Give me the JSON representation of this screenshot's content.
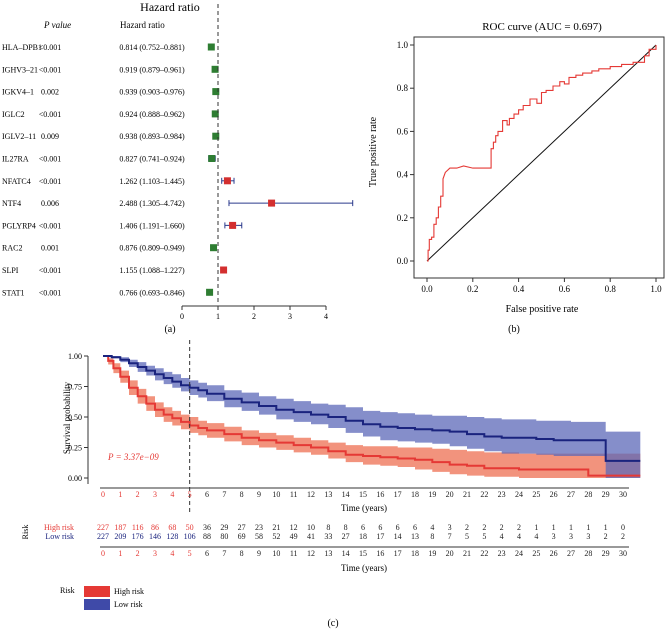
{
  "chart_data": [
    {
      "type": "forest",
      "panel_label": "(a)",
      "title": "Hazard ratio",
      "col_pvalue": "P value",
      "col_hr": "Hazard ratio",
      "xticks": [
        "0",
        "1",
        "2",
        "3",
        "4"
      ],
      "xlim": [
        0,
        4
      ],
      "reference_line": 1,
      "rows": [
        {
          "gene": "HLA–DPB1",
          "p": "<0.001",
          "hr_text": "0.814 (0.752–0.881)",
          "hr": 0.814,
          "lo": 0.752,
          "hi": 0.881
        },
        {
          "gene": "IGHV3–21",
          "p": "<0.001",
          "hr_text": "0.919 (0.879–0.961)",
          "hr": 0.919,
          "lo": 0.879,
          "hi": 0.961
        },
        {
          "gene": "IGKV4–1",
          "p": "0.002",
          "hr_text": "0.939 (0.903–0.976)",
          "hr": 0.939,
          "lo": 0.903,
          "hi": 0.976
        },
        {
          "gene": "IGLC2",
          "p": "<0.001",
          "hr_text": "0.924 (0.888–0.962)",
          "hr": 0.924,
          "lo": 0.888,
          "hi": 0.962
        },
        {
          "gene": "IGLV2–11",
          "p": "0.009",
          "hr_text": "0.938 (0.893–0.984)",
          "hr": 0.938,
          "lo": 0.893,
          "hi": 0.984
        },
        {
          "gene": "IL27RA",
          "p": "<0.001",
          "hr_text": "0.827 (0.741–0.924)",
          "hr": 0.827,
          "lo": 0.741,
          "hi": 0.924
        },
        {
          "gene": "NFATC4",
          "p": "<0.001",
          "hr_text": "1.262 (1.103–1.445)",
          "hr": 1.262,
          "lo": 1.103,
          "hi": 1.445
        },
        {
          "gene": "NTF4",
          "p": "0.006",
          "hr_text": "2.488 (1.305–4.742)",
          "hr": 2.488,
          "lo": 1.305,
          "hi": 4.742
        },
        {
          "gene": "PGLYRP4",
          "p": "<0.001",
          "hr_text": "1.406 (1.191–1.660)",
          "hr": 1.406,
          "lo": 1.191,
          "hi": 1.66
        },
        {
          "gene": "RAC2",
          "p": "0.001",
          "hr_text": "0.876 (0.809–0.949)",
          "hr": 0.876,
          "lo": 0.809,
          "hi": 0.949
        },
        {
          "gene": "SLPI",
          "p": "<0.001",
          "hr_text": "1.155 (1.088–1.227)",
          "hr": 1.155,
          "lo": 1.088,
          "hi": 1.227
        },
        {
          "gene": "STAT1",
          "p": "<0.001",
          "hr_text": "0.766 (0.693–0.846)",
          "hr": 0.766,
          "lo": 0.693,
          "hi": 0.846
        }
      ],
      "colors": {
        "protective": "#2e7d32",
        "risk": "#d32f2f",
        "ci": "#2b3a8c"
      }
    },
    {
      "type": "line",
      "panel_label": "(b)",
      "title": "ROC curve (AUC = 0.697)",
      "xlabel": "False positive rate",
      "ylabel": "True positive rate",
      "xlim": [
        0,
        1
      ],
      "ylim": [
        0,
        1
      ],
      "ticks": [
        "0.0",
        "0.2",
        "0.4",
        "0.6",
        "0.8",
        "1.0"
      ],
      "diagonal": true,
      "color": "#e53935",
      "series": [
        {
          "name": "ROC",
          "x": [
            0,
            0.005,
            0.005,
            0.01,
            0.01,
            0.02,
            0.02,
            0.03,
            0.03,
            0.04,
            0.04,
            0.05,
            0.05,
            0.06,
            0.06,
            0.07,
            0.07,
            0.08,
            0.1,
            0.13,
            0.16,
            0.2,
            0.25,
            0.28,
            0.28,
            0.29,
            0.29,
            0.3,
            0.3,
            0.31,
            0.31,
            0.33,
            0.33,
            0.35,
            0.35,
            0.36,
            0.36,
            0.38,
            0.38,
            0.4,
            0.4,
            0.42,
            0.42,
            0.45,
            0.45,
            0.48,
            0.48,
            0.5,
            0.5,
            0.52,
            0.52,
            0.55,
            0.55,
            0.58,
            0.58,
            0.6,
            0.6,
            0.62,
            0.62,
            0.65,
            0.65,
            0.68,
            0.68,
            0.72,
            0.72,
            0.75,
            0.75,
            0.8,
            0.8,
            0.85,
            0.85,
            0.9,
            0.9,
            0.95,
            0.95,
            0.97,
            0.97,
            1.0,
            1.0
          ],
          "y": [
            0,
            0,
            0.05,
            0.05,
            0.1,
            0.1,
            0.11,
            0.11,
            0.17,
            0.17,
            0.2,
            0.2,
            0.25,
            0.25,
            0.3,
            0.3,
            0.38,
            0.41,
            0.43,
            0.43,
            0.44,
            0.43,
            0.43,
            0.43,
            0.52,
            0.52,
            0.55,
            0.55,
            0.58,
            0.58,
            0.6,
            0.6,
            0.65,
            0.65,
            0.63,
            0.63,
            0.66,
            0.66,
            0.68,
            0.68,
            0.7,
            0.7,
            0.72,
            0.72,
            0.75,
            0.75,
            0.73,
            0.73,
            0.78,
            0.78,
            0.79,
            0.79,
            0.81,
            0.81,
            0.83,
            0.83,
            0.82,
            0.82,
            0.85,
            0.85,
            0.86,
            0.86,
            0.87,
            0.87,
            0.88,
            0.88,
            0.89,
            0.89,
            0.9,
            0.9,
            0.91,
            0.91,
            0.92,
            0.92,
            0.95,
            0.95,
            0.98,
            0.98,
            1.0
          ]
        }
      ]
    },
    {
      "type": "survival",
      "panel_label": "(c)",
      "ylabel": "Survival probability",
      "xlabel": "Time (years)",
      "yticks": [
        "0.00",
        "0.25",
        "0.50",
        "0.75",
        "1.00"
      ],
      "xticks": [
        "0",
        "1",
        "2",
        "3",
        "4",
        "5",
        "6",
        "7",
        "8",
        "9",
        "10",
        "11",
        "12",
        "13",
        "14",
        "15",
        "16",
        "17",
        "18",
        "19",
        "20",
        "21",
        "22",
        "23",
        "24",
        "25",
        "26",
        "27",
        "28",
        "29",
        "30"
      ],
      "xlim": [
        0,
        31
      ],
      "ylim": [
        0,
        1
      ],
      "cutoff": 5,
      "pvalue": "P = 3.37e−09",
      "series": [
        {
          "name": "High risk",
          "color": "#e53935",
          "band": "#f08066",
          "t": [
            0,
            0.3,
            0.6,
            1,
            1.5,
            2,
            2.5,
            3,
            3.5,
            4,
            4.5,
            5,
            5.5,
            6,
            7,
            8,
            9,
            10,
            11,
            12,
            13,
            14,
            15,
            16,
            17,
            18,
            19,
            20,
            21,
            22,
            23,
            24,
            25,
            26,
            27,
            28,
            29,
            30
          ],
          "s": [
            1.0,
            0.96,
            0.9,
            0.83,
            0.74,
            0.67,
            0.61,
            0.56,
            0.52,
            0.49,
            0.46,
            0.43,
            0.41,
            0.39,
            0.36,
            0.33,
            0.31,
            0.29,
            0.27,
            0.25,
            0.22,
            0.19,
            0.18,
            0.17,
            0.16,
            0.15,
            0.13,
            0.11,
            0.1,
            0.08,
            0.08,
            0.07,
            0.07,
            0.07,
            0.07,
            0.02,
            0.02,
            0.02
          ],
          "band_hi": [
            1.0,
            0.98,
            0.94,
            0.88,
            0.8,
            0.73,
            0.67,
            0.62,
            0.58,
            0.55,
            0.52,
            0.5,
            0.47,
            0.45,
            0.42,
            0.39,
            0.37,
            0.35,
            0.33,
            0.31,
            0.29,
            0.27,
            0.26,
            0.26,
            0.25,
            0.25,
            0.24,
            0.23,
            0.22,
            0.21,
            0.21,
            0.2,
            0.2,
            0.2,
            0.2,
            0.2,
            0.2,
            0.2
          ],
          "band_lo": [
            1.0,
            0.93,
            0.86,
            0.78,
            0.68,
            0.61,
            0.55,
            0.5,
            0.46,
            0.43,
            0.4,
            0.37,
            0.35,
            0.33,
            0.3,
            0.27,
            0.25,
            0.23,
            0.21,
            0.19,
            0.16,
            0.13,
            0.11,
            0.1,
            0.09,
            0.07,
            0.05,
            0.03,
            0.02,
            0.01,
            0.01,
            0.0,
            0.0,
            0.0,
            0.0,
            0.0,
            0.0,
            0.0
          ]
        },
        {
          "name": "Low risk",
          "color": "#1a237e",
          "band": "#5c68b8",
          "t": [
            0,
            0.5,
            1,
            1.5,
            2,
            2.5,
            3,
            3.5,
            4,
            4.5,
            5,
            5.5,
            6,
            7,
            8,
            9,
            10,
            11,
            12,
            13,
            14,
            15,
            16,
            17,
            18,
            19,
            20,
            21,
            22,
            23,
            24,
            25,
            26,
            27,
            28,
            29,
            30
          ],
          "s": [
            1.0,
            0.99,
            0.97,
            0.94,
            0.91,
            0.88,
            0.85,
            0.82,
            0.79,
            0.76,
            0.74,
            0.72,
            0.69,
            0.65,
            0.62,
            0.59,
            0.56,
            0.54,
            0.52,
            0.5,
            0.47,
            0.44,
            0.42,
            0.41,
            0.4,
            0.39,
            0.38,
            0.36,
            0.34,
            0.33,
            0.33,
            0.32,
            0.31,
            0.31,
            0.31,
            0.14,
            0.14
          ],
          "band_hi": [
            1.0,
            1.0,
            0.99,
            0.97,
            0.95,
            0.92,
            0.9,
            0.87,
            0.85,
            0.82,
            0.8,
            0.78,
            0.76,
            0.72,
            0.7,
            0.67,
            0.65,
            0.63,
            0.61,
            0.6,
            0.58,
            0.55,
            0.54,
            0.53,
            0.52,
            0.51,
            0.51,
            0.5,
            0.49,
            0.48,
            0.48,
            0.47,
            0.47,
            0.46,
            0.46,
            0.38,
            0.38
          ],
          "band_lo": [
            1.0,
            0.98,
            0.95,
            0.91,
            0.87,
            0.84,
            0.8,
            0.77,
            0.74,
            0.71,
            0.68,
            0.66,
            0.63,
            0.58,
            0.55,
            0.52,
            0.48,
            0.46,
            0.44,
            0.41,
            0.37,
            0.34,
            0.31,
            0.3,
            0.29,
            0.28,
            0.26,
            0.24,
            0.22,
            0.2,
            0.2,
            0.19,
            0.18,
            0.18,
            0.18,
            0.0,
            0.0
          ]
        }
      ],
      "risk_table": {
        "title": "Risk",
        "rows": [
          {
            "label": "High risk",
            "color": "#e53935",
            "values": [
              "227",
              "187",
              "116",
              "86",
              "68",
              "50",
              "36",
              "29",
              "27",
              "23",
              "21",
              "12",
              "10",
              "8",
              "8",
              "6",
              "6",
              "6",
              "6",
              "4",
              "3",
              "2",
              "2",
              "2",
              "2",
              "1",
              "1",
              "1",
              "1",
              "1",
              "0"
            ]
          },
          {
            "label": "Low risk",
            "color": "#1a237e",
            "values": [
              "227",
              "209",
              "176",
              "146",
              "128",
              "106",
              "88",
              "80",
              "69",
              "58",
              "52",
              "49",
              "41",
              "33",
              "27",
              "18",
              "17",
              "14",
              "13",
              "8",
              "7",
              "5",
              "5",
              "4",
              "4",
              "4",
              "3",
              "3",
              "3",
              "2",
              "2"
            ]
          }
        ],
        "xticks": [
          "0",
          "1",
          "2",
          "3",
          "4",
          "5",
          "6",
          "7",
          "8",
          "9",
          "10",
          "11",
          "12",
          "13",
          "14",
          "15",
          "16",
          "17",
          "18",
          "19",
          "20",
          "21",
          "22",
          "23",
          "24",
          "25",
          "26",
          "27",
          "28",
          "29",
          "30"
        ],
        "xlabel": "Time (years)"
      },
      "legend": {
        "title": "Risk",
        "items": [
          {
            "label": "High risk",
            "color": "#e53935"
          },
          {
            "label": "Low risk",
            "color": "#3f4aa8"
          }
        ]
      }
    }
  ]
}
